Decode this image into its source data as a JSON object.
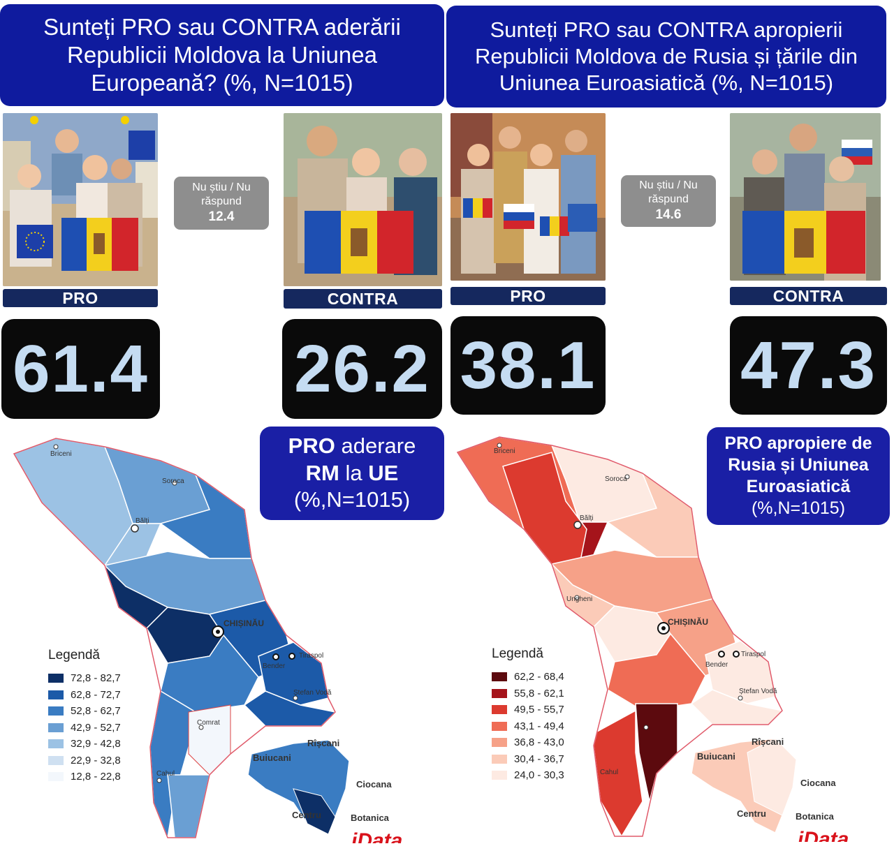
{
  "left": {
    "question": "Sunteți PRO sau CONTRA aderării Republicii Moldova la Uniunea Europeană? (%, N=1015)",
    "question_lines": [
      "Sunteți PRO sau CONTRA aderării",
      "Republicii Moldova la Uniunea",
      "Europeană? (%, N=1015)"
    ],
    "pro_label": "PRO",
    "contra_label": "CONTRA",
    "pro_value": "61.4",
    "contra_value": "26.2",
    "dont_know_lines": [
      "Nu știu / Nu",
      "răspund"
    ],
    "dont_know_value": "12.4",
    "legend_box_line1_bold": "PRO",
    "legend_box_line1_rest": "aderare",
    "legend_box_line2_bold": "RM",
    "legend_box_line2_mid": "la",
    "legend_box_line2_end": "UE",
    "legend_box_line3": "(%,N=1015)",
    "legend_title": "Legendă",
    "legend": [
      {
        "range": "72,8 - 82,7",
        "color": "#0d2f66"
      },
      {
        "range": "62,8 - 72,7",
        "color": "#1c5aa8"
      },
      {
        "range": "52,8 - 62,7",
        "color": "#3a7cc2"
      },
      {
        "range": "42,9 - 52,7",
        "color": "#6a9fd3"
      },
      {
        "range": "32,9 - 42,8",
        "color": "#9cc2e4"
      },
      {
        "range": "22,9 - 32,8",
        "color": "#cfe0f1"
      },
      {
        "range": "12,8 - 22,8",
        "color": "#f3f7fc"
      }
    ],
    "cities": {
      "briceni": "Briceni",
      "soroca": "Soroca",
      "balti": "Bălți",
      "chisinau": "CHIȘINĂU",
      "tiraspol": "Tiraspol",
      "bender": "Bender",
      "stefan_voda": "Ștefan Vodă",
      "comrat": "Comrat",
      "cahul": "Cahul"
    },
    "sectors": {
      "riscani": "Rîșcani",
      "buiucani": "Buiucani",
      "ciocana": "Ciocana",
      "centru": "Centru",
      "botanica": "Botanica"
    }
  },
  "right": {
    "question": "Sunteți PRO sau CONTRA apropierii Republicii Moldova de Rusia și țările din Uniunea Euroasiatică (%, N=1015)",
    "question_lines": [
      "Sunteți PRO sau CONTRA apropierii",
      "Republicii Moldova de Rusia și țările din",
      "Uniunea Euroasiatică (%, N=1015)"
    ],
    "pro_label": "PRO",
    "contra_label": "CONTRA",
    "pro_value": "38.1",
    "contra_value": "47.3",
    "dont_know_lines": [
      "Nu știu / Nu",
      "răspund"
    ],
    "dont_know_value": "14.6",
    "legend_box_lines": [
      "PRO apropiere de",
      "Rusia și Uniunea",
      "Euroasiatică",
      "(%,N=1015)"
    ],
    "legend_title": "Legendă",
    "legend": [
      {
        "range": "62,2 - 68,4",
        "color": "#5c0a0e"
      },
      {
        "range": "55,8 - 62,1",
        "color": "#a5141b"
      },
      {
        "range": "49,5 - 55,7",
        "color": "#dc3a2f"
      },
      {
        "range": "43,1 - 49,4",
        "color": "#ef6c55"
      },
      {
        "range": "36,8 - 43,0",
        "color": "#f6a188"
      },
      {
        "range": "30,4 - 36,7",
        "color": "#fbcbb8"
      },
      {
        "range": "24,0 - 30,3",
        "color": "#fdeae2"
      }
    ],
    "cities": {
      "briceni": "Briceni",
      "soroca": "Soroca",
      "balti": "Bălți",
      "ungheni": "Ungheni",
      "chisinau": "CHIȘINĂU",
      "tiraspol": "Tiraspol",
      "bender": "Bender",
      "stefan_voda": "Ștefan Vodă",
      "cahul": "Cahul"
    },
    "sectors": {
      "riscani": "Rîșcani",
      "buiucani": "Buiucani",
      "ciocana": "Ciocana",
      "centru": "Centru",
      "botanica": "Botanica"
    }
  },
  "logo_text": "iData"
}
